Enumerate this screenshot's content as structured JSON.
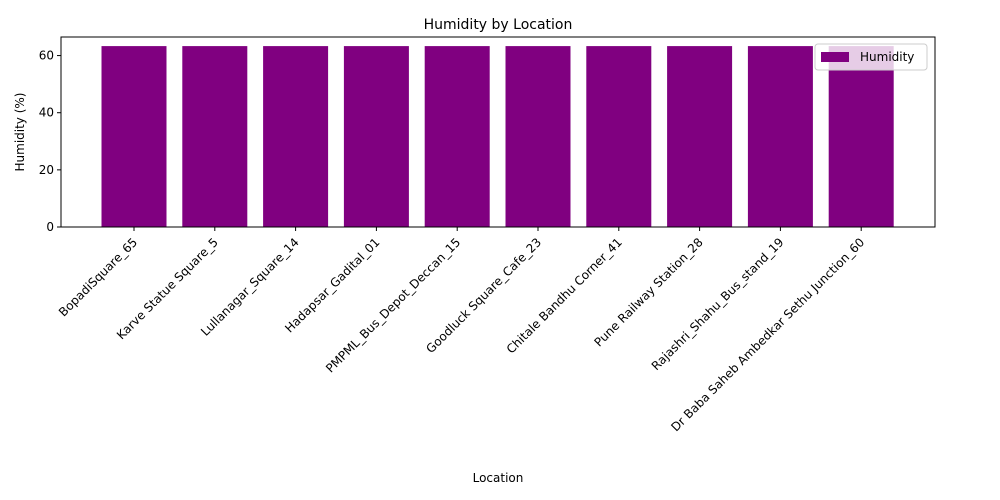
{
  "chart_data": {
    "type": "bar",
    "title": "Humidity by Location",
    "xlabel": "Location",
    "ylabel": "Humidity (%)",
    "categories": [
      "BopadiSquare_65",
      "Karve Statue Square_5",
      "Lullanagar_Square_14",
      "Hadapsar_Gadital_01",
      "PMPML_Bus_Depot_Deccan_15",
      "Goodluck Square_Cafe_23",
      "Chitale Bandhu Corner_41",
      "Pune Railway Station_28",
      "Rajashri_Shahu_Bus_stand_19",
      "Dr Baba Saheb Ambedkar Sethu Junction_60"
    ],
    "series": [
      {
        "name": "Humidity",
        "color": "#800080",
        "values": [
          63.3,
          63.3,
          63.3,
          63.3,
          63.3,
          63.3,
          63.3,
          63.3,
          63.3,
          63.3
        ]
      }
    ],
    "ylim": [
      0,
      66.5
    ],
    "yticks": [
      0,
      20,
      40,
      60
    ],
    "grid": false,
    "legend_position": "top-right"
  }
}
